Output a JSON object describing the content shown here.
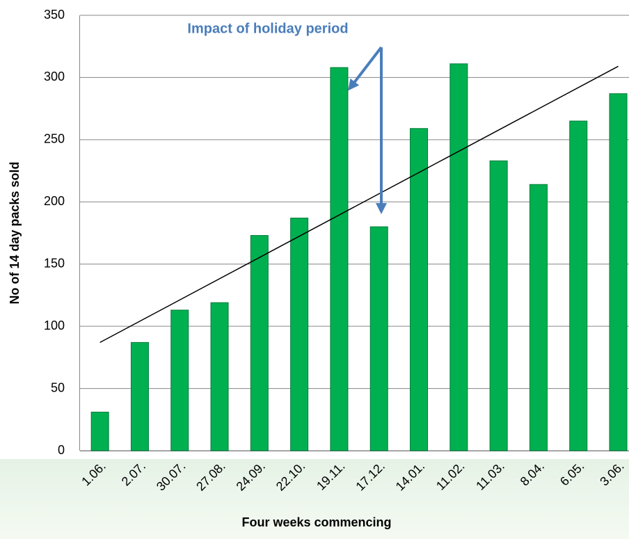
{
  "chart_data": {
    "type": "bar",
    "annotation": "Impact of holiday period",
    "xlabel": "Four weeks commencing",
    "ylabel": "No of 14 day packs sold",
    "categories": [
      "1.06.",
      "2.07.",
      "30.07.",
      "27.08.",
      "24.09.",
      "22.10.",
      "19.11.",
      "17.12.",
      "14.01.",
      "11.02.",
      "11.03.",
      "8.04.",
      "6.05.",
      "3.06."
    ],
    "values": [
      31,
      87,
      113,
      119,
      173,
      187,
      308,
      180,
      259,
      311,
      233,
      214,
      265,
      287
    ],
    "color": "#00b050",
    "trendline": {
      "color": "#000000",
      "values": [
        87,
        309
      ]
    },
    "ylim": [
      0,
      350
    ],
    "yticks": [
      0,
      50,
      100,
      150,
      200,
      250,
      300,
      350
    ],
    "grid": true
  }
}
